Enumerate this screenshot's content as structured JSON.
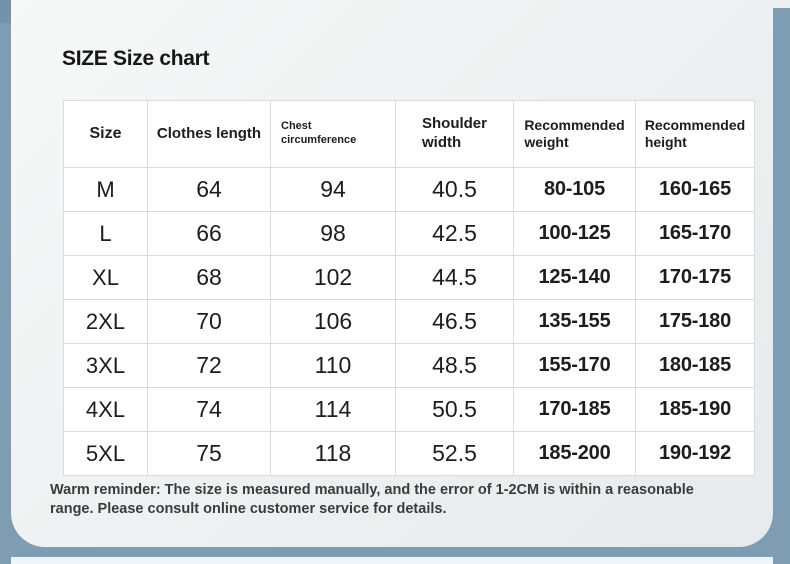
{
  "header": {
    "title": "SIZE Size chart"
  },
  "table": {
    "columns": [
      "Size",
      "Clothes length",
      "Chest\ncircumference",
      "Shoulder\nwidth",
      "Recommended\nweight",
      "Recommended\nheight"
    ],
    "column_keys": [
      "size",
      "clothes-length",
      "chest-circumference",
      "shoulder-width",
      "recommended-weight",
      "recommended-height"
    ],
    "rows": [
      [
        "M",
        "64",
        "94",
        "40.5",
        "80-105",
        "160-165"
      ],
      [
        "L",
        "66",
        "98",
        "42.5",
        "100-125",
        "165-170"
      ],
      [
        "XL",
        "68",
        "102",
        "44.5",
        "125-140",
        "170-175"
      ],
      [
        "2XL",
        "70",
        "106",
        "46.5",
        "135-155",
        "175-180"
      ],
      [
        "3XL",
        "72",
        "110",
        "48.5",
        "155-170",
        "180-185"
      ],
      [
        "4XL",
        "74",
        "114",
        "50.5",
        "170-185",
        "185-190"
      ],
      [
        "5XL",
        "75",
        "118",
        "52.5",
        "185-200",
        "190-192"
      ]
    ]
  },
  "footer": {
    "lines": [
      "Warm reminder: The size is measured manually, and the error of 1-2CM is within a reasonable",
      "range. Please consult online customer service for details."
    ]
  },
  "colors": {
    "frame_blue": "#7E9DB3",
    "frame_blue_top": "#7593A8",
    "content_bg_light": "#F7F8F8",
    "content_bg_dark": "#E7EAEC",
    "table_border": "#D9DCDE",
    "cell_bg": "#FFFFFF",
    "text_dark": "#1D1D1D",
    "note_text": "#3B3B3B",
    "bottom_strip": "#EFF6FA"
  }
}
